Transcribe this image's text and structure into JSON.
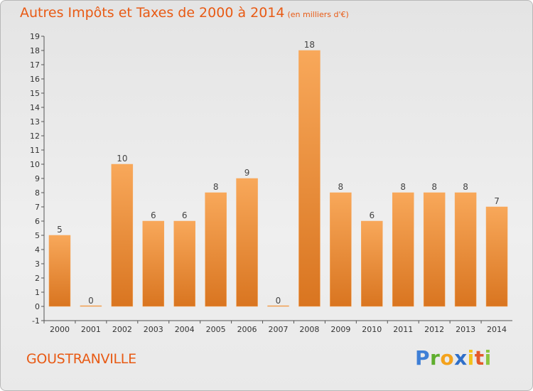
{
  "title": "Autres Impôts et Taxes de 2000 à 2014",
  "unit": "(en milliers d'€)",
  "town": "GOUSTRANVILLE",
  "logo": {
    "p": "P",
    "r": "r",
    "o": "o",
    "x": "x",
    "i1": "i",
    "t": "t",
    "i2": "i"
  },
  "colors": {
    "bar_light": "#f8a85a",
    "bar_dark": "#d97520",
    "title": "#e85a14"
  },
  "chart_data": {
    "type": "bar",
    "title": "Autres Impôts et Taxes de 2000 à 2014",
    "subtitle": "(en milliers d'€)",
    "categories": [
      "2000",
      "2001",
      "2002",
      "2003",
      "2004",
      "2005",
      "2006",
      "2007",
      "2008",
      "2009",
      "2010",
      "2011",
      "2012",
      "2013",
      "2014"
    ],
    "values": [
      5,
      0,
      10,
      6,
      6,
      8,
      9,
      0,
      18,
      8,
      6,
      8,
      8,
      8,
      7
    ],
    "y_ticks": [
      "-1",
      "0",
      "1",
      "2",
      "3",
      "4",
      "5",
      "6",
      "7",
      "8",
      "9",
      "10",
      "11",
      "12",
      "13",
      "14",
      "15",
      "16",
      "17",
      "18",
      "19"
    ],
    "ylim": [
      -1,
      19
    ],
    "grid": false,
    "data_labels": true
  }
}
